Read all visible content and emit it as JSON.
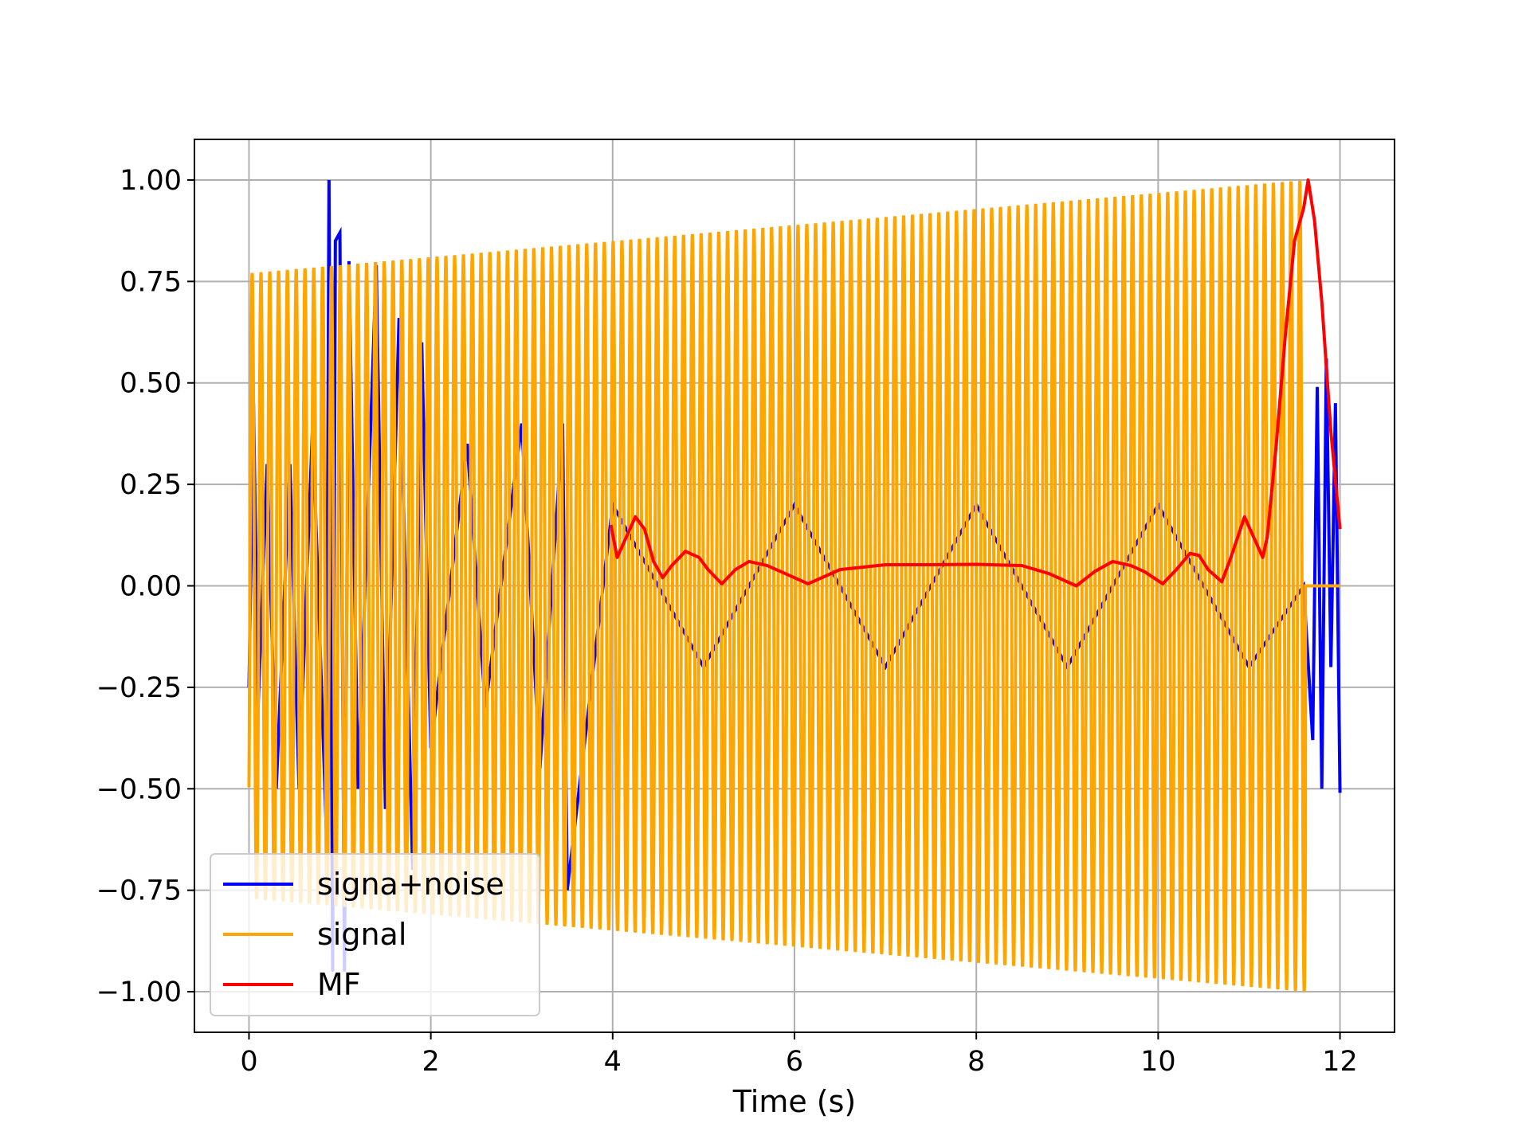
{
  "chart_data": {
    "type": "line",
    "title": "",
    "xlabel": "Time (s)",
    "ylabel": "",
    "xlim": [
      -0.6,
      12.6
    ],
    "ylim": [
      -1.1,
      1.1
    ],
    "xticks": [
      0,
      2,
      4,
      6,
      8,
      10,
      12
    ],
    "xtick_labels": [
      "0",
      "2",
      "4",
      "6",
      "8",
      "10",
      "12"
    ],
    "yticks": [
      1.0,
      0.75,
      0.5,
      0.25,
      0.0,
      -0.25,
      -0.5,
      -0.75,
      -1.0
    ],
    "ytick_labels": [
      "1.00",
      "0.75",
      "0.50",
      "0.25",
      "0.00",
      "−0.25",
      "−0.50",
      "−0.75",
      "−1.00"
    ],
    "grid": true,
    "legend_position": "lower-left",
    "series": [
      {
        "name": "signa+noise",
        "color": "#0000ff",
        "description_values": {
          "t_start": 0,
          "t_end": 12,
          "x": [
            0.0,
            0.05,
            0.1,
            0.2,
            0.3,
            0.45,
            0.55,
            0.7,
            0.85,
            0.88,
            0.92,
            0.95,
            1.0,
            1.05,
            1.1,
            1.2,
            1.4,
            1.5,
            1.65,
            1.8,
            1.9,
            2.0,
            2.4,
            2.6,
            3.0,
            3.2,
            3.45,
            3.5,
            4.0,
            5.0,
            6.0,
            7.0,
            8.0,
            9.0,
            10.0,
            11.0,
            11.6,
            11.7,
            11.75,
            11.8,
            11.85,
            11.9,
            11.95,
            12.0
          ],
          "y": [
            -0.25,
            0.45,
            -0.3,
            0.3,
            -0.5,
            0.3,
            -0.5,
            0.4,
            -0.6,
            1.0,
            -0.95,
            0.85,
            0.87,
            -0.95,
            0.8,
            -0.5,
            0.79,
            -0.55,
            0.66,
            -0.7,
            0.6,
            -0.4,
            0.35,
            -0.3,
            0.4,
            -0.45,
            0.4,
            -0.75,
            0.2,
            -0.2,
            0.2,
            -0.2,
            0.2,
            -0.2,
            0.2,
            -0.2,
            0.0,
            -0.38,
            0.49,
            -0.5,
            0.56,
            -0.2,
            0.45,
            -0.51
          ]
        }
      },
      {
        "name": "signal",
        "color": "#ffa500",
        "t_start": 0,
        "t_end": 11.62,
        "amplitude_start": 0.77,
        "amplitude_end": 1.0,
        "cycles": 120,
        "tail_value": 0.0,
        "tail_end": 12.0
      },
      {
        "name": "MF",
        "color": "#ff0000",
        "x": [
          3.98,
          4.05,
          4.15,
          4.25,
          4.35,
          4.45,
          4.55,
          4.65,
          4.8,
          4.95,
          5.05,
          5.2,
          5.35,
          5.5,
          5.7,
          5.9,
          6.15,
          6.5,
          7.0,
          7.5,
          8.0,
          8.5,
          8.8,
          9.1,
          9.3,
          9.5,
          9.7,
          9.85,
          10.05,
          10.2,
          10.35,
          10.45,
          10.55,
          10.7,
          10.8,
          10.95,
          11.05,
          11.15,
          11.2,
          11.3,
          11.4,
          11.5,
          11.6,
          11.65,
          11.72,
          11.8,
          11.9,
          12.0
        ],
        "y": [
          0.15,
          0.07,
          0.12,
          0.17,
          0.14,
          0.06,
          0.02,
          0.05,
          0.085,
          0.07,
          0.04,
          0.005,
          0.04,
          0.06,
          0.05,
          0.03,
          0.005,
          0.04,
          0.052,
          0.052,
          0.053,
          0.05,
          0.03,
          0.0,
          0.035,
          0.06,
          0.05,
          0.035,
          0.005,
          0.04,
          0.08,
          0.075,
          0.04,
          0.01,
          0.07,
          0.17,
          0.12,
          0.07,
          0.12,
          0.35,
          0.62,
          0.85,
          0.93,
          1.0,
          0.9,
          0.7,
          0.38,
          0.14
        ]
      }
    ]
  }
}
